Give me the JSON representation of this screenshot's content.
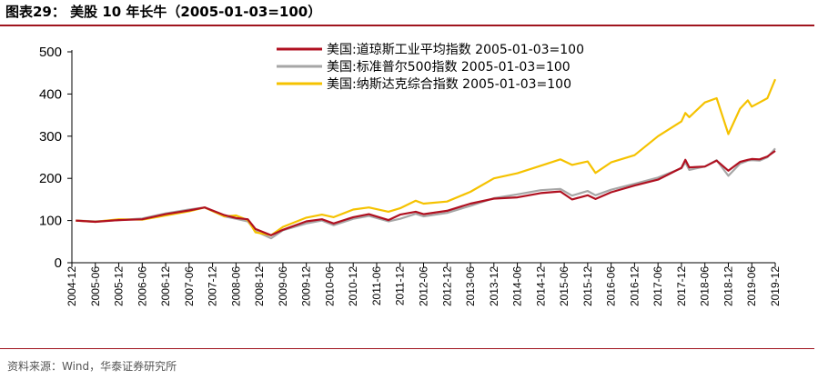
{
  "figure": {
    "title": "图表29： 美股 10 年长牛（2005-01-03=100）",
    "source": "资料来源：Wind，华泰证券研究所"
  },
  "colors": {
    "rule": "#a0141e",
    "dow": "#b01020",
    "sp500": "#a6a6a6",
    "nasdaq": "#f5c200",
    "axis": "#000000"
  },
  "chart_data": {
    "type": "line",
    "title": "",
    "xlabel": "",
    "ylabel": "",
    "ylim": [
      0,
      500
    ],
    "yticks": [
      0,
      100,
      200,
      300,
      400,
      500
    ],
    "xlim": [
      "2004-12",
      "2019-12"
    ],
    "xticks": [
      "2004-12",
      "2005-06",
      "2005-12",
      "2006-06",
      "2006-12",
      "2007-06",
      "2007-12",
      "2008-06",
      "2008-12",
      "2009-06",
      "2009-12",
      "2010-06",
      "2010-12",
      "2011-06",
      "2011-12",
      "2012-06",
      "2012-12",
      "2013-06",
      "2013-12",
      "2014-06",
      "2014-12",
      "2015-06",
      "2015-12",
      "2016-06",
      "2016-12",
      "2017-06",
      "2017-12",
      "2018-06",
      "2018-12",
      "2019-06",
      "2019-12"
    ],
    "grid": false,
    "legend_position": "top-center",
    "x": [
      "2005-01",
      "2005-06",
      "2005-12",
      "2006-06",
      "2006-12",
      "2007-06",
      "2007-10",
      "2008-03",
      "2008-06",
      "2008-09",
      "2008-11",
      "2009-03",
      "2009-06",
      "2009-12",
      "2010-04",
      "2010-07",
      "2010-12",
      "2011-04",
      "2011-09",
      "2011-12",
      "2012-04",
      "2012-06",
      "2012-12",
      "2013-06",
      "2013-12",
      "2014-06",
      "2014-12",
      "2015-05",
      "2015-08",
      "2015-12",
      "2016-02",
      "2016-06",
      "2016-12",
      "2017-06",
      "2017-12",
      "2018-01",
      "2018-02",
      "2018-06",
      "2018-09",
      "2018-12",
      "2019-03",
      "2019-05",
      "2019-06",
      "2019-08",
      "2019-10",
      "2019-12"
    ],
    "series": [
      {
        "name": "美国:道琼斯工业平均指数 2005-01-03=100",
        "color": "#b01020",
        "values": [
          100,
          97,
          101,
          103,
          115,
          124,
          131,
          113,
          106,
          103,
          80,
          65,
          78,
          98,
          103,
          93,
          108,
          115,
          101,
          114,
          121,
          115,
          123,
          140,
          152,
          155,
          165,
          169,
          150,
          160,
          151,
          167,
          183,
          197,
          225,
          244,
          226,
          228,
          242,
          218,
          239,
          244,
          246,
          245,
          252,
          265
        ]
      },
      {
        "name": "美国:标准普尔500指数 2005-01-03=100",
        "color": "#a6a6a6",
        "values": [
          100,
          98,
          101,
          105,
          117,
          126,
          131,
          110,
          104,
          98,
          75,
          58,
          77,
          93,
          100,
          89,
          104,
          111,
          98,
          104,
          116,
          110,
          118,
          135,
          153,
          162,
          172,
          175,
          159,
          170,
          160,
          173,
          187,
          202,
          224,
          238,
          220,
          228,
          243,
          206,
          235,
          242,
          243,
          242,
          250,
          271
        ]
      },
      {
        "name": "美国:纳斯达克综合指数 2005-01-03=100",
        "color": "#f5c200",
        "values": [
          100,
          97,
          103,
          102,
          112,
          122,
          131,
          110,
          112,
          101,
          72,
          65,
          85,
          107,
          114,
          108,
          126,
          131,
          121,
          129,
          147,
          140,
          145,
          168,
          200,
          212,
          230,
          245,
          232,
          240,
          213,
          238,
          255,
          300,
          335,
          355,
          345,
          380,
          390,
          305,
          365,
          385,
          370,
          380,
          390,
          435
        ]
      }
    ]
  }
}
